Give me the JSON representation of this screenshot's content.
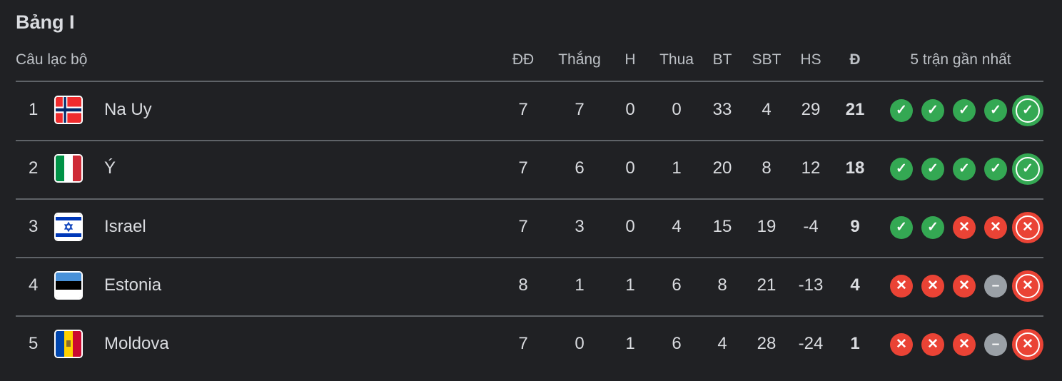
{
  "title": "Bảng I",
  "headers": {
    "club": "Câu lạc bộ",
    "played": "ĐĐ",
    "won": "Thắng",
    "drawn": "H",
    "lost": "Thua",
    "gf": "BT",
    "ga": "SBT",
    "gd": "HS",
    "pts": "Đ",
    "form": "5 trận gần nhất"
  },
  "colors": {
    "win": "#34a853",
    "loss": "#ea4335",
    "draw": "#9aa0a6"
  },
  "rows": [
    {
      "rank": "1",
      "name": "Na Uy",
      "flag": "norway",
      "played": "7",
      "won": "7",
      "drawn": "0",
      "lost": "0",
      "gf": "33",
      "ga": "4",
      "gd": "29",
      "pts": "21",
      "form": [
        "W",
        "W",
        "W",
        "W",
        "W"
      ]
    },
    {
      "rank": "2",
      "name": "Ý",
      "flag": "italy",
      "played": "7",
      "won": "6",
      "drawn": "0",
      "lost": "1",
      "gf": "20",
      "ga": "8",
      "gd": "12",
      "pts": "18",
      "form": [
        "W",
        "W",
        "W",
        "W",
        "W"
      ]
    },
    {
      "rank": "3",
      "name": "Israel",
      "flag": "israel",
      "played": "7",
      "won": "3",
      "drawn": "0",
      "lost": "4",
      "gf": "15",
      "ga": "19",
      "gd": "-4",
      "pts": "9",
      "form": [
        "W",
        "W",
        "L",
        "L",
        "L"
      ]
    },
    {
      "rank": "4",
      "name": "Estonia",
      "flag": "estonia",
      "played": "8",
      "won": "1",
      "drawn": "1",
      "lost": "6",
      "gf": "8",
      "ga": "21",
      "gd": "-13",
      "pts": "4",
      "form": [
        "L",
        "L",
        "L",
        "D",
        "L"
      ]
    },
    {
      "rank": "5",
      "name": "Moldova",
      "flag": "moldova",
      "played": "7",
      "won": "0",
      "drawn": "1",
      "lost": "6",
      "gf": "4",
      "ga": "28",
      "gd": "-24",
      "pts": "1",
      "form": [
        "L",
        "L",
        "L",
        "D",
        "L"
      ]
    }
  ]
}
